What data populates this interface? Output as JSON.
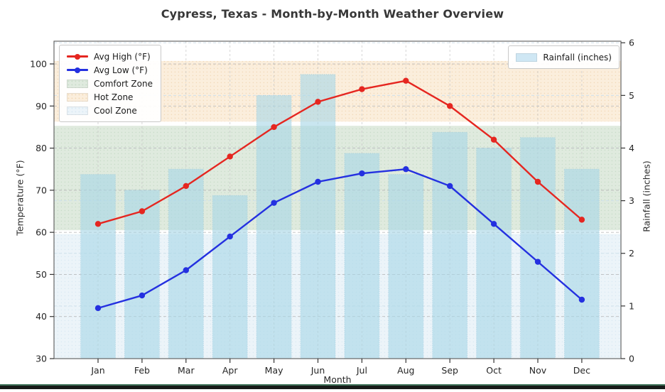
{
  "chart_data": {
    "type": "line+bar",
    "title": "Cypress, Texas - Month-by-Month Weather Overview",
    "xlabel": "Month",
    "ylabel_left": "Temperature (°F)",
    "ylabel_right": "Rainfall (inches)",
    "categories": [
      "Jan",
      "Feb",
      "Mar",
      "Apr",
      "May",
      "Jun",
      "Jul",
      "Aug",
      "Sep",
      "Oct",
      "Nov",
      "Dec"
    ],
    "series": [
      {
        "name": "Avg High (°F)",
        "type": "line",
        "axis": "left",
        "color": "#e52620",
        "values": [
          62,
          65,
          71,
          78,
          85,
          91,
          94,
          96,
          90,
          82,
          72,
          63
        ]
      },
      {
        "name": "Avg Low (°F)",
        "type": "line",
        "axis": "left",
        "color": "#2430e0",
        "values": [
          42,
          45,
          51,
          59,
          67,
          72,
          74,
          75,
          71,
          62,
          53,
          44
        ]
      },
      {
        "name": "Rainfall (inches)",
        "type": "bar",
        "axis": "right",
        "color": "#a8d7e6",
        "values": [
          3.5,
          3.2,
          3.6,
          3.1,
          5.0,
          5.4,
          3.9,
          3.5,
          4.3,
          4.0,
          4.2,
          3.6
        ]
      }
    ],
    "zones": [
      {
        "name": "Comfort Zone",
        "from": 60.5,
        "to": 85.3,
        "color": "#dfeade",
        "dot": "#c8dcc8"
      },
      {
        "name": "Hot Zone",
        "from": 86.3,
        "to": 100.7,
        "color": "#fbeedc",
        "dot": "#f2d9b8"
      },
      {
        "name": "Cool Zone",
        "from": 30,
        "to": 59.6,
        "color": "#ecf4f9",
        "dot": "#d9e9f3"
      }
    ],
    "temp_axis": {
      "min": 30,
      "max": 105.4,
      "ticks": [
        30,
        40,
        50,
        60,
        70,
        80,
        90,
        100
      ]
    },
    "rain_axis": {
      "min": 0,
      "max": 6.03,
      "ticks": [
        0,
        1,
        2,
        3,
        4,
        5,
        6
      ]
    },
    "grid": true,
    "legend_left_position": "upper left",
    "legend_right_position": "upper right"
  },
  "legend_left": {
    "items": [
      {
        "label": "Avg High (°F)"
      },
      {
        "label": "Avg Low (°F)"
      },
      {
        "label": "Comfort Zone"
      },
      {
        "label": "Hot Zone"
      },
      {
        "label": "Cool Zone"
      }
    ]
  },
  "legend_right": {
    "items": [
      {
        "label": "Rainfall (inches)"
      }
    ]
  },
  "colors": {
    "avg_high": "#e52620",
    "avg_low": "#2430e0",
    "rainfall_bar": "#cfe7f4",
    "comfort_zone": "#dfeade",
    "hot_zone": "#fbeedc",
    "cool_zone": "#ecf4f9",
    "grid": "#b3b3b3",
    "footer_green": "#40735a",
    "footer_dark": "#181b19"
  }
}
